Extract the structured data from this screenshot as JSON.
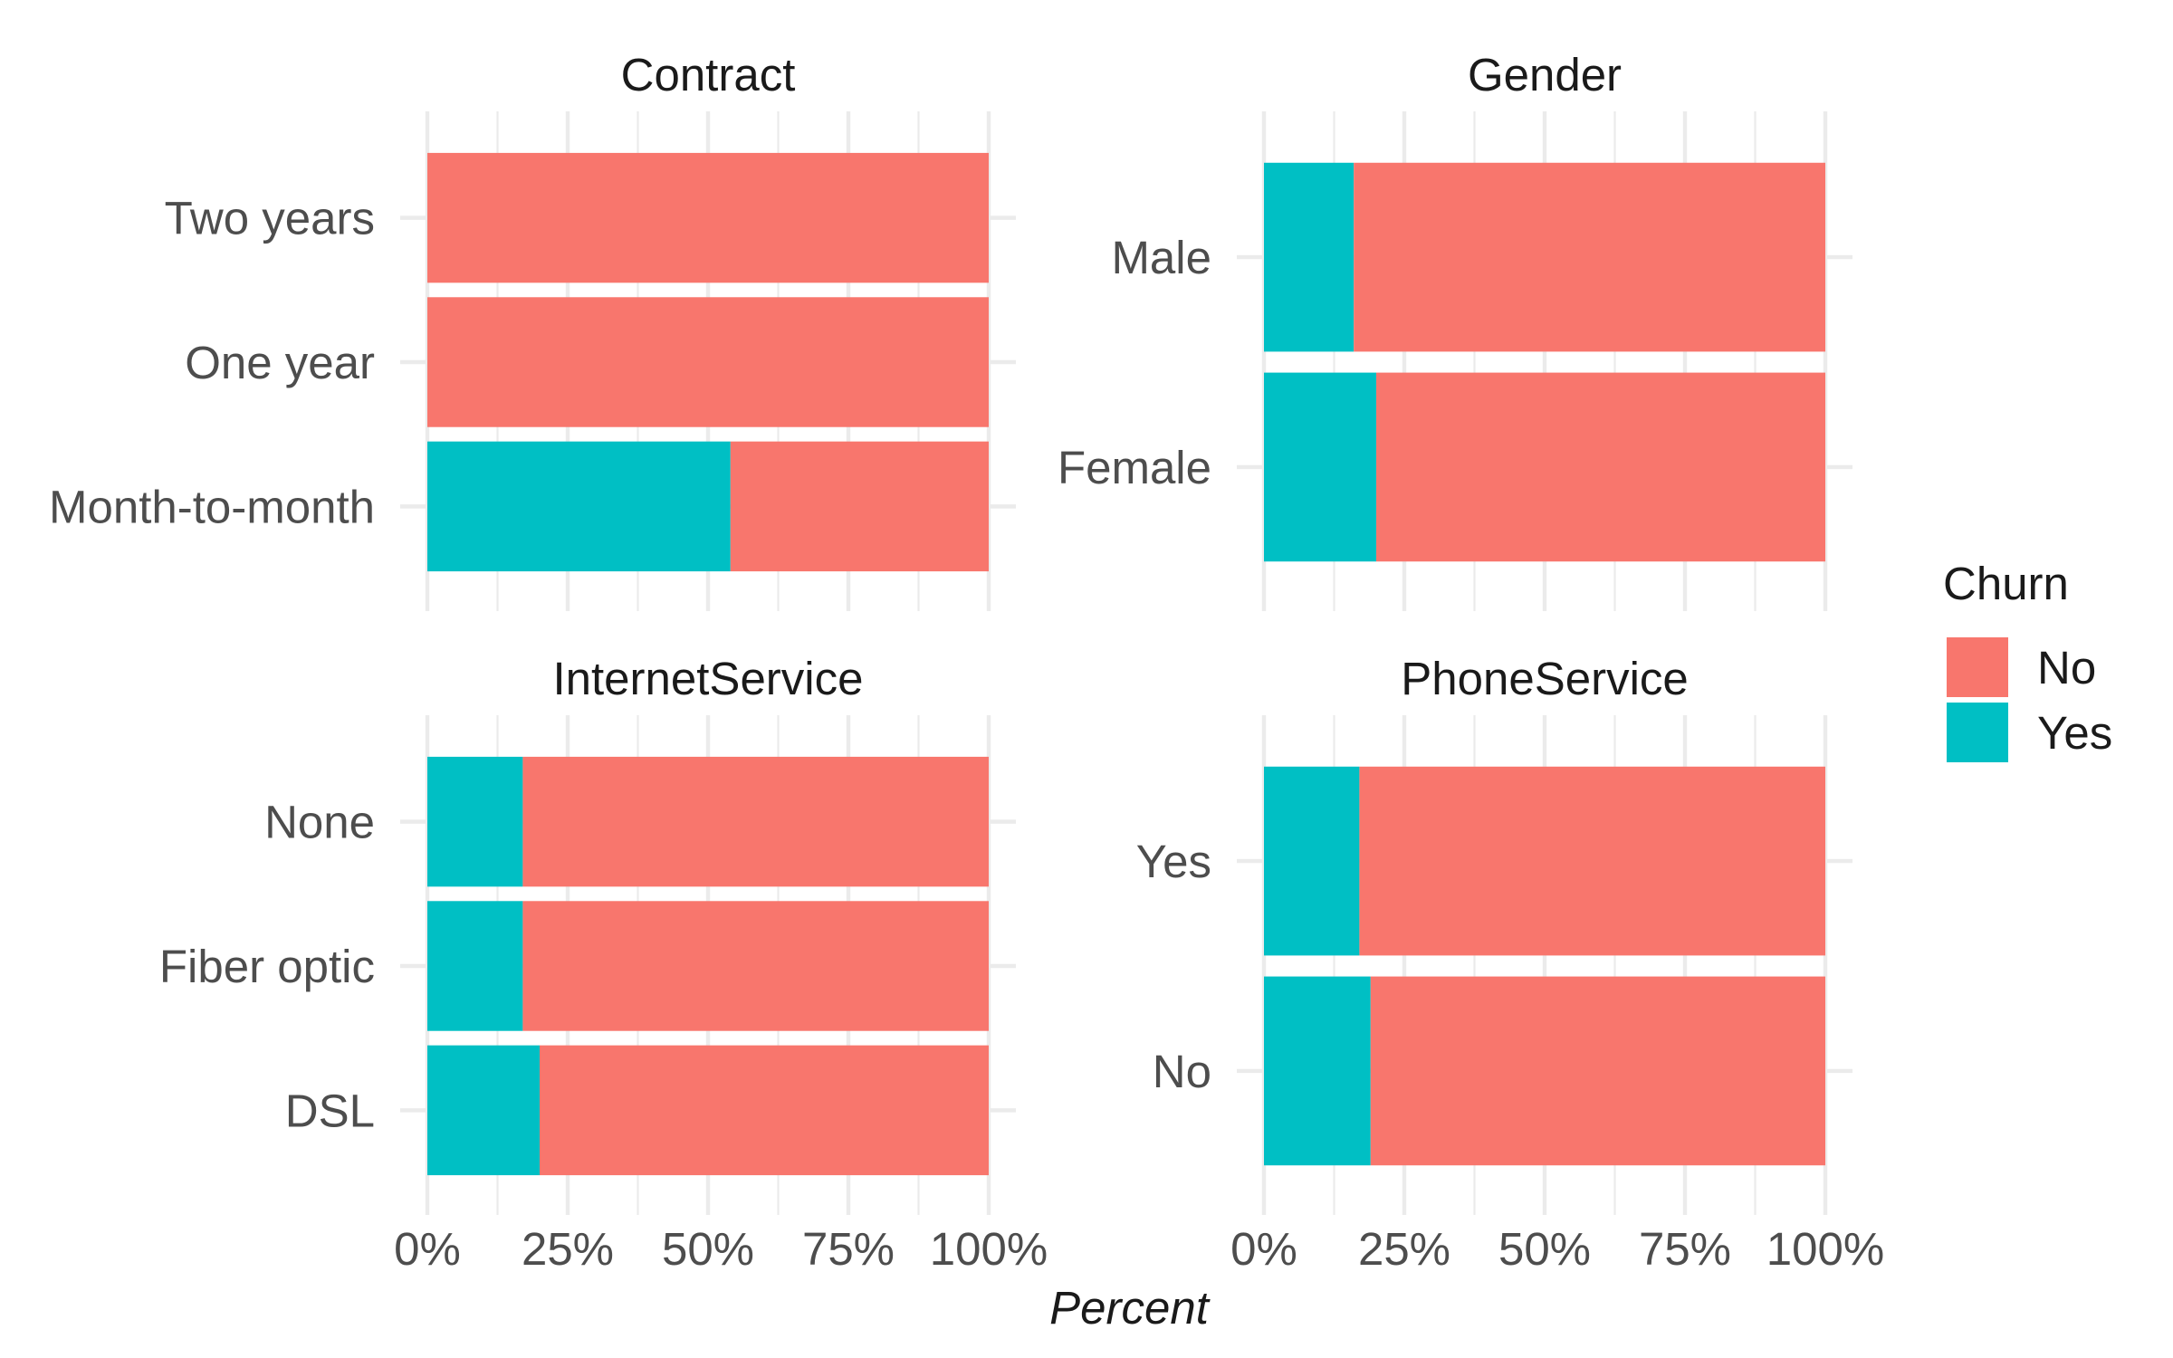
{
  "chart_data": {
    "type": "bar",
    "orientation": "horizontal",
    "stacked": "percent",
    "xlabel": "Percent",
    "x_ticks": [
      "0%",
      "25%",
      "50%",
      "75%",
      "100%"
    ],
    "xlim": [
      0,
      100
    ],
    "grid": true,
    "legend": {
      "title": "Churn",
      "placement": "right",
      "entries": [
        {
          "name": "No",
          "color": "#F8766D"
        },
        {
          "name": "Yes",
          "color": "#00BFC4"
        }
      ]
    },
    "panels": [
      {
        "title": "Contract",
        "categories": [
          "Two years",
          "One year",
          "Month-to-month"
        ],
        "series": [
          {
            "name": "Yes",
            "values": [
              0,
              0,
              54
            ]
          },
          {
            "name": "No",
            "values": [
              100,
              100,
              46
            ]
          }
        ]
      },
      {
        "title": "Gender",
        "categories": [
          "Male",
          "Female"
        ],
        "series": [
          {
            "name": "Yes",
            "values": [
              16,
              20
            ]
          },
          {
            "name": "No",
            "values": [
              84,
              80
            ]
          }
        ]
      },
      {
        "title": "InternetService",
        "categories": [
          "None",
          "Fiber optic",
          "DSL"
        ],
        "series": [
          {
            "name": "Yes",
            "values": [
              17,
              17,
              20
            ]
          },
          {
            "name": "No",
            "values": [
              83,
              83,
              80
            ]
          }
        ]
      },
      {
        "title": "PhoneService",
        "categories": [
          "Yes",
          "No"
        ],
        "series": [
          {
            "name": "Yes",
            "values": [
              17,
              19
            ]
          },
          {
            "name": "No",
            "values": [
              83,
              81
            ]
          }
        ]
      }
    ]
  }
}
